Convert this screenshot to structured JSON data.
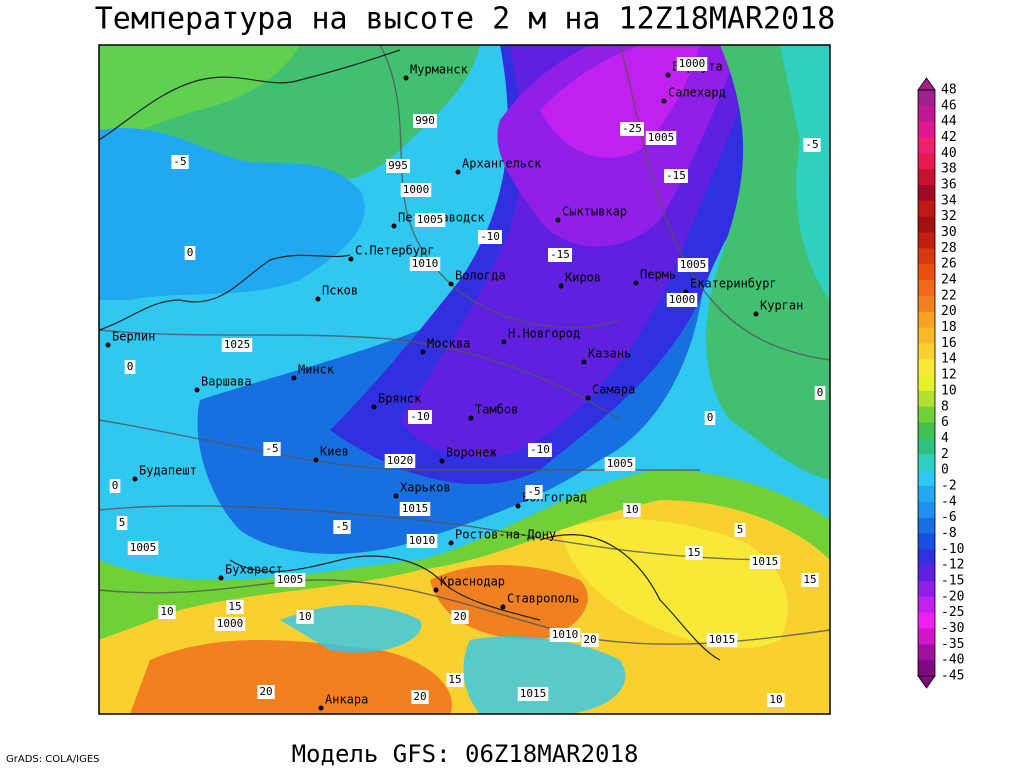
{
  "title": "Температура на высоте 2 м на 12Z18MAR2018",
  "model": "Модель GFS: 06Z18MAR2018",
  "credit": "GrADS: COLA/IGES",
  "cities": [
    "Мурманск",
    "Воркута",
    "Салехард",
    "Архангельск",
    "Сыктывкар",
    "Петрозаводск",
    "С.Петербург",
    "Вологда",
    "Киров",
    "Пермь",
    "Екатеринбург",
    "Курган",
    "Псков",
    "Берлин",
    "Москва",
    "Н.Новгород",
    "Казань",
    "Минск",
    "Варшава",
    "Брянск",
    "Тамбов",
    "Самара",
    "Киев",
    "Воронеж",
    "Будапешт",
    "Харьков",
    "Волгоград",
    "Ростов-на-Дону",
    "Бухарест",
    "Краснодар",
    "Ставрополь",
    "Анкара"
  ],
  "isobar_labels": [
    990,
    995,
    1000,
    1005,
    1010,
    1025,
    1020,
    1015,
    1010,
    1005,
    1005,
    1000,
    1010,
    1015,
    1015,
    1015,
    1005,
    1005,
    1000,
    1005,
    1000
  ],
  "isotherm_labels": [
    -25,
    -15,
    -5,
    -10,
    -15,
    -5,
    0,
    0,
    -5,
    -10,
    -10,
    -5,
    -5,
    0,
    5,
    10,
    15,
    15,
    10,
    15,
    20,
    20,
    15,
    20,
    20,
    10,
    0,
    0,
    5,
    10
  ],
  "colorbar": {
    "levels": [
      48,
      46,
      44,
      42,
      40,
      38,
      36,
      34,
      32,
      30,
      28,
      26,
      24,
      22,
      20,
      18,
      16,
      14,
      12,
      10,
      8,
      6,
      4,
      2,
      0,
      -2,
      -4,
      -6,
      -8,
      -10,
      -12,
      -15,
      -20,
      -25,
      -30,
      -35,
      -40,
      -45
    ],
    "colors": [
      "#a0208c",
      "#c01890",
      "#e01890",
      "#f02070",
      "#e81850",
      "#c81030",
      "#a00a20",
      "#c01818",
      "#a01010",
      "#c02010",
      "#d83a10",
      "#e85010",
      "#f06818",
      "#f08020",
      "#f8a020",
      "#f8b828",
      "#f8d030",
      "#f8e838",
      "#e8f028",
      "#b0e030",
      "#70d038",
      "#40c050",
      "#30c080",
      "#30d0c0",
      "#30c8f0",
      "#20a8f0",
      "#2090f0",
      "#1870e0",
      "#1850e0",
      "#3030e0",
      "#6020e0",
      "#9020e8",
      "#c020f0",
      "#f020f0",
      "#d018c8",
      "#a010a0",
      "#800880"
    ]
  }
}
